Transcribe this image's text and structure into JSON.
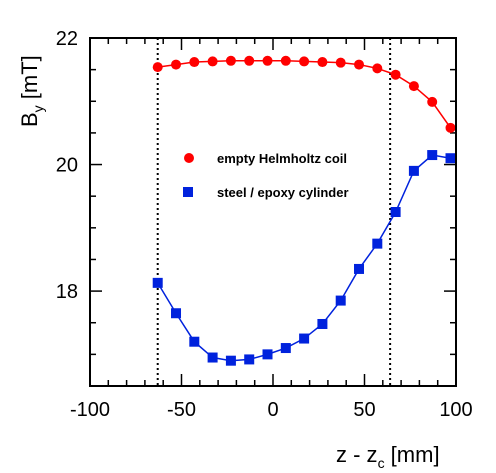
{
  "chart_data": {
    "type": "line",
    "title": "",
    "xlabel": {
      "main": "z - z",
      "sub": "c",
      "unit": " [mm]"
    },
    "ylabel": {
      "main": "B",
      "sub": "y",
      "unit": " [mT]"
    },
    "xlim": [
      -100,
      100
    ],
    "ylim": [
      16.5,
      22
    ],
    "xticks": [
      -100,
      -50,
      0,
      50,
      100
    ],
    "yticks": [
      18,
      20,
      22
    ],
    "x_minor_step": 10,
    "y_minor_step": 0.5,
    "grid": false,
    "legend_position": "center-left",
    "vlines": [
      -63,
      64
    ],
    "series": [
      {
        "name": "empty Helmholtz coil",
        "color": "#ff0000",
        "marker": "circle",
        "x": [
          -63,
          -53,
          -43,
          -33,
          -23,
          -13,
          -3,
          7,
          17,
          27,
          37,
          47,
          57,
          67,
          77,
          87,
          97
        ],
        "y": [
          21.54,
          21.58,
          21.62,
          21.63,
          21.64,
          21.64,
          21.64,
          21.64,
          21.63,
          21.62,
          21.61,
          21.58,
          21.52,
          21.42,
          21.24,
          20.99,
          20.58
        ]
      },
      {
        "name": "steel / epoxy cylinder",
        "color": "#0022dd",
        "marker": "square",
        "x": [
          -63,
          -53,
          -43,
          -33,
          -23,
          -13,
          -3,
          7,
          17,
          27,
          37,
          47,
          57,
          67,
          77,
          87,
          97
        ],
        "y": [
          18.13,
          17.65,
          17.2,
          16.95,
          16.9,
          16.92,
          17.0,
          17.1,
          17.25,
          17.48,
          17.85,
          18.35,
          18.75,
          19.25,
          19.9,
          20.15,
          20.1
        ]
      }
    ]
  }
}
